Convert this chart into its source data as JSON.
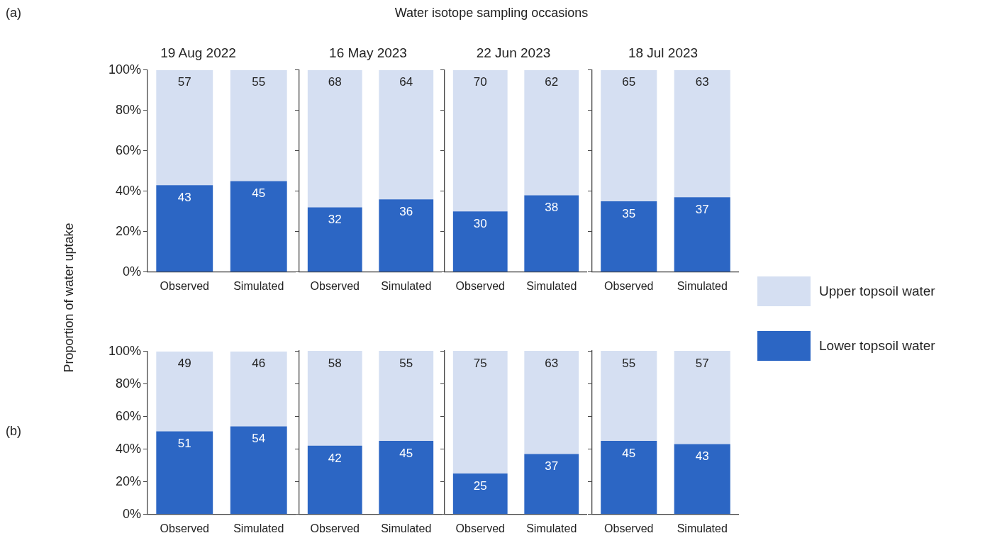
{
  "chart_data": [
    {
      "type": "bar",
      "title": "19 Aug 2022",
      "ylabel": "Proportion of water uptake",
      "annotations": [
        "(a)",
        "Water isotope sampling occasions"
      ],
      "categories": [
        "Observed",
        "Simulated"
      ],
      "stacked": true,
      "data_labels": true,
      "ylim": [
        0,
        100
      ],
      "yticks": [
        {
          "value": 0,
          "label": "0%"
        },
        {
          "value": 20,
          "label": "20%"
        },
        {
          "value": 40,
          "label": "40%"
        },
        {
          "value": 60,
          "label": "60%"
        },
        {
          "value": 80,
          "label": "80%"
        },
        {
          "value": 100,
          "label": "100%"
        }
      ],
      "grid": false,
      "series": [
        {
          "color": "#2c66c4",
          "values": [
            43,
            45
          ]
        },
        {
          "color": "#d5dff2",
          "values": [
            57,
            55
          ]
        }
      ]
    },
    {
      "type": "bar",
      "title": "16 May 2023",
      "categories": [
        "Observed",
        "Simulated"
      ],
      "stacked": true,
      "data_labels": true,
      "ylim": [
        0,
        100
      ],
      "yticks": [
        {
          "value": 0,
          "label": null
        },
        {
          "value": 20,
          "label": null
        },
        {
          "value": 40,
          "label": null
        },
        {
          "value": 60,
          "label": null
        },
        {
          "value": 80,
          "label": null
        },
        {
          "value": 100,
          "label": null
        }
      ],
      "tick_labels": "x",
      "grid": false,
      "series": [
        {
          "color": "#2c66c4",
          "values": [
            32,
            36
          ]
        },
        {
          "color": "#d5dff2",
          "values": [
            68,
            64
          ]
        }
      ]
    },
    {
      "type": "bar",
      "title": "22 Jun 2023",
      "categories": [
        "Observed",
        "Simulated"
      ],
      "stacked": true,
      "data_labels": true,
      "ylim": [
        0,
        100
      ],
      "yticks": [
        {
          "value": 0,
          "label": null
        },
        {
          "value": 20,
          "label": null
        },
        {
          "value": 40,
          "label": null
        },
        {
          "value": 60,
          "label": null
        },
        {
          "value": 80,
          "label": null
        },
        {
          "value": 100,
          "label": null
        }
      ],
      "tick_labels": "x",
      "grid": false,
      "series": [
        {
          "color": "#2c66c4",
          "values": [
            30,
            38
          ]
        },
        {
          "color": "#d5dff2",
          "values": [
            70,
            62
          ]
        }
      ]
    },
    {
      "type": "bar",
      "title": "18 Jul 2023",
      "categories": [
        "Observed",
        "Simulated"
      ],
      "stacked": true,
      "data_labels": true,
      "legend": "right",
      "ylim": [
        0,
        100
      ],
      "yticks": [
        {
          "value": 0,
          "label": null
        },
        {
          "value": 20,
          "label": null
        },
        {
          "value": 40,
          "label": null
        },
        {
          "value": 60,
          "label": null
        },
        {
          "value": 80,
          "label": null
        },
        {
          "value": 100,
          "label": null
        }
      ],
      "tick_labels": "x",
      "grid": false,
      "series": [
        {
          "name": "Lower topsoil water",
          "color": "#2c66c4",
          "values": [
            35,
            37
          ]
        },
        {
          "name": "Upper topsoil water",
          "color": "#d5dff2",
          "values": [
            65,
            63
          ]
        }
      ]
    },
    {
      "type": "bar",
      "annotations": [
        "(b)"
      ],
      "categories": [
        "Observed",
        "Simulated"
      ],
      "stacked": true,
      "data_labels": true,
      "ylim": [
        0,
        100
      ],
      "yticks": [
        {
          "value": 0,
          "label": "0%"
        },
        {
          "value": 20,
          "label": "20%"
        },
        {
          "value": 40,
          "label": "40%"
        },
        {
          "value": 60,
          "label": "60%"
        },
        {
          "value": 80,
          "label": "80%"
        },
        {
          "value": 100,
          "label": "100%"
        }
      ],
      "grid": false,
      "series": [
        {
          "color": "#2c66c4",
          "values": [
            51,
            54
          ]
        },
        {
          "color": "#d5dff2",
          "values": [
            49,
            46
          ]
        }
      ]
    },
    {
      "type": "bar",
      "categories": [
        "Observed",
        "Simulated"
      ],
      "stacked": true,
      "data_labels": true,
      "ylim": [
        0,
        100
      ],
      "yticks": [
        {
          "value": 0,
          "label": null
        },
        {
          "value": 20,
          "label": null
        },
        {
          "value": 40,
          "label": null
        },
        {
          "value": 60,
          "label": null
        },
        {
          "value": 80,
          "label": null
        },
        {
          "value": 100,
          "label": null
        }
      ],
      "tick_labels": "x",
      "grid": false,
      "series": [
        {
          "color": "#2c66c4",
          "values": [
            42,
            45
          ]
        },
        {
          "color": "#d5dff2",
          "values": [
            58,
            55
          ]
        }
      ]
    },
    {
      "type": "bar",
      "categories": [
        "Observed",
        "Simulated"
      ],
      "stacked": true,
      "data_labels": true,
      "ylim": [
        0,
        100
      ],
      "yticks": [
        {
          "value": 0,
          "label": null
        },
        {
          "value": 20,
          "label": null
        },
        {
          "value": 40,
          "label": null
        },
        {
          "value": 60,
          "label": null
        },
        {
          "value": 80,
          "label": null
        },
        {
          "value": 100,
          "label": null
        }
      ],
      "tick_labels": "x",
      "grid": false,
      "series": [
        {
          "color": "#2c66c4",
          "values": [
            25,
            37
          ]
        },
        {
          "color": "#d5dff2",
          "values": [
            75,
            63
          ]
        }
      ]
    },
    {
      "type": "bar",
      "categories": [
        "Observed",
        "Simulated"
      ],
      "stacked": true,
      "data_labels": true,
      "ylim": [
        0,
        100
      ],
      "yticks": [
        {
          "value": 0,
          "label": null
        },
        {
          "value": 20,
          "label": null
        },
        {
          "value": 40,
          "label": null
        },
        {
          "value": 60,
          "label": null
        },
        {
          "value": 80,
          "label": null
        },
        {
          "value": 100,
          "label": null
        }
      ],
      "tick_labels": "x",
      "grid": false,
      "series": [
        {
          "color": "#2c66c4",
          "values": [
            45,
            43
          ]
        },
        {
          "color": "#d5dff2",
          "values": [
            55,
            57
          ]
        }
      ]
    }
  ]
}
